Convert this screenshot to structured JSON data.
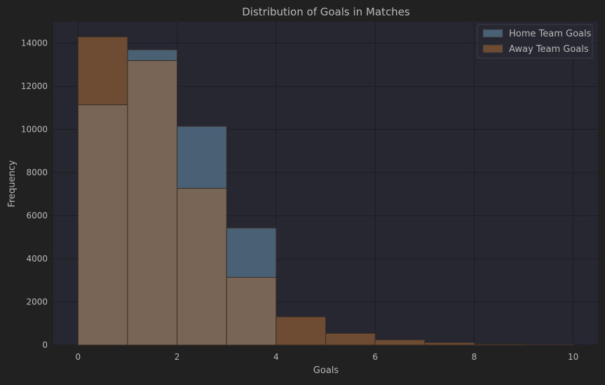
{
  "colors": {
    "background": "#212121",
    "plot_background": "#262731",
    "grid": "#1c1d22",
    "text": "#b9b9b9",
    "home": "#4a6175",
    "away": "#6e4b33",
    "overlap": "#796555",
    "edge": "#3a2e26"
  },
  "chart_data": {
    "type": "bar",
    "title": "Distribution of Goals in Matches",
    "xlabel": "Goals",
    "ylabel": "Frequency",
    "xlim": [
      -0.5,
      10.5
    ],
    "ylim": [
      0,
      15000
    ],
    "xticks": [
      0,
      2,
      4,
      6,
      8,
      10
    ],
    "yticks": [
      0,
      2000,
      4000,
      6000,
      8000,
      10000,
      12000,
      14000
    ],
    "bin_edges": [
      0,
      1,
      2,
      3,
      4,
      5,
      6,
      7,
      8,
      9,
      10
    ],
    "grid": true,
    "legend": "top-right",
    "series": [
      {
        "name": "Home Team Goals",
        "values": [
          11150,
          13700,
          10150,
          5430,
          0,
          0,
          0,
          0,
          0,
          0
        ]
      },
      {
        "name": "Away Team Goals",
        "values": [
          14300,
          13200,
          7270,
          3140,
          1310,
          540,
          240,
          110,
          40,
          20
        ]
      }
    ]
  }
}
